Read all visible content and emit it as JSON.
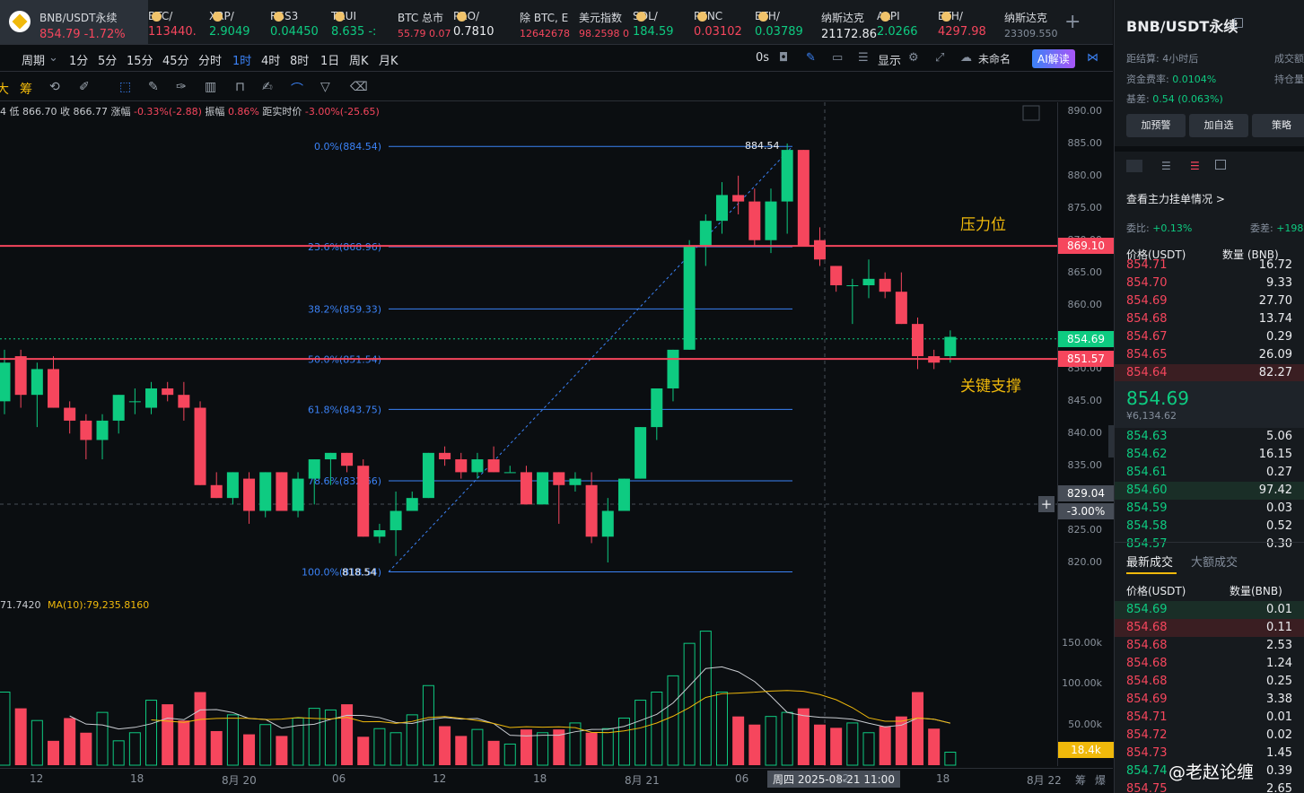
{
  "tabs": [
    {
      "name": "BNB/USDT永续",
      "value": "854.79  -1.72%",
      "color": "#f6465d",
      "active": true
    },
    {
      "name": "BTC/",
      "value": "113440.",
      "color": "#f6465d"
    },
    {
      "name": "XRP/",
      "value": "2.9049",
      "color": "#0ecb81"
    },
    {
      "name": "RSS3",
      "value": "0.04450",
      "color": "#0ecb81"
    },
    {
      "name": "TRUI",
      "value": "8.635  -:",
      "color": "#0ecb81"
    },
    {
      "name": "BTC 总市",
      "value": "55.79  0.07",
      "color": "#f6465d"
    },
    {
      "name": "PRO/",
      "value": "0.7810",
      "color": "#eaecef"
    },
    {
      "name": "除 BTC, E",
      "value": "12642678",
      "color": "#f6465d"
    },
    {
      "name": "美元指数",
      "value": "98.2598  0",
      "color": "#f6465d"
    },
    {
      "name": "SOL/",
      "value": "184.59",
      "color": "#0ecb81"
    },
    {
      "name": "PENC",
      "value": "0.03102",
      "color": "#f6465d"
    },
    {
      "name": "ETH/",
      "value": "0.03789",
      "color": "#0ecb81"
    },
    {
      "name": "纳斯达克",
      "value": "21172.86",
      "color": "#eaecef"
    },
    {
      "name": "ALPI",
      "value": "2.0266",
      "color": "#0ecb81"
    },
    {
      "name": "ETH/",
      "value": "4297.98",
      "color": "#f6465d"
    },
    {
      "name": "纳斯达克",
      "value": "23309.550",
      "color": "#848e9c"
    }
  ],
  "toolbar": {
    "period": "周期",
    "intervals": [
      "1分",
      "5分",
      "15分",
      "45分",
      "分时",
      "1时",
      "4时",
      "8时",
      "1日",
      "周K",
      "月K"
    ],
    "active": "1时",
    "countdown": "0s",
    "display": "显示",
    "layout": "未命名",
    "ai": "AI解读"
  },
  "toolbar2": {
    "left": [
      "大",
      "筹"
    ]
  },
  "info": {
    "text1": "4  低 866.70  收 866.77  涨幅 ",
    "chg": "-0.33%(-2.88)",
    "text2": "  振幅 ",
    "amp": "0.86%",
    "text3": "  距实时价 ",
    "dist": "-3.00%(-25.65)"
  },
  "volume_info": {
    "left": "71.7420",
    "ma": "MA(10):79,235.8160"
  },
  "fib": [
    {
      "label": "0.0%(884.54)",
      "price": 884.54
    },
    {
      "label": "23.6%(868.96)",
      "price": 868.96
    },
    {
      "label": "38.2%(859.33)",
      "price": 859.33
    },
    {
      "label": "50.0%(851.54)",
      "price": 851.54
    },
    {
      "label": "61.8%(843.75)",
      "price": 843.75
    },
    {
      "label": "78.6%(832.66)",
      "price": 832.66
    },
    {
      "label": "100.0%(818.54)",
      "price": 818.54
    }
  ],
  "fib_high_label": "884.54",
  "fib_low_label": "818.54",
  "annotations": {
    "resistance": "压力位",
    "support": "关键支撑"
  },
  "price_axis": [
    "890.00",
    "885.00",
    "880.00",
    "875.00",
    "870.00",
    "865.00",
    "860.00",
    "855.00",
    "850.00",
    "845.00",
    "840.00",
    "835.00",
    "830.00",
    "825.00",
    "820.00"
  ],
  "price_tags": {
    "resistance": "869.10",
    "last": "854.69",
    "support": "851.57",
    "cross_price": "829.04",
    "cross_pct": "-3.00%"
  },
  "vol_axis": [
    "150.00k",
    "100.00k",
    "50.00k"
  ],
  "vol_tag": "18.4k",
  "x_axis": [
    "12",
    "18",
    "8月 20",
    "06",
    "12",
    "18",
    "8月 21",
    "06",
    "12",
    "18",
    "8月 22"
  ],
  "x_cross": "周四 2025-08-21 11:00",
  "right": {
    "title": "BNB/USDT永续",
    "settle_label": "距结算:",
    "settle_val": "4小时后",
    "turnover_label": "成交额",
    "funding_label": "资金费率:",
    "funding_val": "0.0104%",
    "oi_label": "持仓量",
    "basis_label": "基差:",
    "basis_val": "0.54 (0.063%)",
    "buttons": [
      "加预警",
      "加自选",
      "策略"
    ],
    "depth_link": "查看主力挂单情况 >",
    "ratio_label": "委比:",
    "ratio_val": "+0.13%",
    "diff_label": "委差:",
    "diff_val": "+198",
    "ob_head_price": "价格(USDT)",
    "ob_head_qty": "数量 (BNB)",
    "asks": [
      [
        "854.71",
        "16.72"
      ],
      [
        "854.70",
        "9.33"
      ],
      [
        "854.69",
        "27.70"
      ],
      [
        "854.68",
        "13.74"
      ],
      [
        "854.67",
        "0.29"
      ],
      [
        "854.65",
        "26.09"
      ],
      [
        "854.64",
        "82.27"
      ]
    ],
    "mid": "854.69",
    "mid_sub": "¥6,134.62",
    "bids": [
      [
        "854.63",
        "5.06"
      ],
      [
        "854.62",
        "16.15"
      ],
      [
        "854.61",
        "0.27"
      ],
      [
        "854.60",
        "97.42"
      ],
      [
        "854.59",
        "0.03"
      ],
      [
        "854.58",
        "0.52"
      ],
      [
        "854.57",
        "0.30"
      ]
    ],
    "trades_tab1": "最新成交",
    "trades_tab2": "大额成交",
    "tr_head_price": "价格(USDT)",
    "tr_head_qty": "数量(BNB)",
    "trades": [
      [
        "854.69",
        "0.01",
        "g"
      ],
      [
        "854.68",
        "0.11",
        "r"
      ],
      [
        "854.68",
        "2.53",
        "r"
      ],
      [
        "854.68",
        "1.24",
        "r"
      ],
      [
        "854.68",
        "0.25",
        "r"
      ],
      [
        "854.69",
        "3.38",
        "r"
      ],
      [
        "854.71",
        "0.01",
        "r"
      ],
      [
        "854.72",
        "0.02",
        "r"
      ],
      [
        "854.73",
        "1.45",
        "r"
      ],
      [
        "854.74",
        "0.39",
        "g"
      ],
      [
        "854.75",
        "2.65",
        "r"
      ]
    ],
    "watermark": "@老赵论缠"
  },
  "chart_data": {
    "type": "candlestick",
    "interval": "1h",
    "ylim": [
      817,
      891
    ],
    "candles": [
      {
        "o": 845,
        "h": 853,
        "l": 843,
        "c": 851
      },
      {
        "o": 852,
        "h": 853,
        "l": 844,
        "c": 846
      },
      {
        "o": 846,
        "h": 851,
        "l": 841,
        "c": 850
      },
      {
        "o": 850,
        "h": 852,
        "l": 844,
        "c": 844
      },
      {
        "o": 844,
        "h": 845,
        "l": 840,
        "c": 842
      },
      {
        "o": 842,
        "h": 843,
        "l": 836,
        "c": 839
      },
      {
        "o": 839,
        "h": 843,
        "l": 836,
        "c": 842
      },
      {
        "o": 842,
        "h": 846,
        "l": 840,
        "c": 846
      },
      {
        "o": 845,
        "h": 847,
        "l": 843,
        "c": 845
      },
      {
        "o": 844,
        "h": 848,
        "l": 843,
        "c": 847
      },
      {
        "o": 847,
        "h": 848,
        "l": 845,
        "c": 846
      },
      {
        "o": 846,
        "h": 848,
        "l": 842,
        "c": 844
      },
      {
        "o": 844,
        "h": 845,
        "l": 832,
        "c": 832
      },
      {
        "o": 832,
        "h": 834,
        "l": 830,
        "c": 830
      },
      {
        "o": 830,
        "h": 834,
        "l": 829,
        "c": 834
      },
      {
        "o": 833,
        "h": 834,
        "l": 826,
        "c": 828
      },
      {
        "o": 828,
        "h": 834,
        "l": 827,
        "c": 834
      },
      {
        "o": 834,
        "h": 834,
        "l": 828,
        "c": 828
      },
      {
        "o": 828,
        "h": 834,
        "l": 827,
        "c": 833
      },
      {
        "o": 833,
        "h": 836,
        "l": 829,
        "c": 836
      },
      {
        "o": 836,
        "h": 837,
        "l": 832,
        "c": 837
      },
      {
        "o": 837,
        "h": 837,
        "l": 834,
        "c": 835
      },
      {
        "o": 835,
        "h": 836,
        "l": 824,
        "c": 824
      },
      {
        "o": 824,
        "h": 826,
        "l": 823,
        "c": 825
      },
      {
        "o": 825,
        "h": 831,
        "l": 821,
        "c": 828
      },
      {
        "o": 828,
        "h": 831,
        "l": 828,
        "c": 830
      },
      {
        "o": 830,
        "h": 837,
        "l": 830,
        "c": 837
      },
      {
        "o": 837,
        "h": 838,
        "l": 835,
        "c": 836
      },
      {
        "o": 836,
        "h": 837,
        "l": 833,
        "c": 834
      },
      {
        "o": 834,
        "h": 837,
        "l": 833,
        "c": 836
      },
      {
        "o": 836,
        "h": 838,
        "l": 834,
        "c": 834
      },
      {
        "o": 834,
        "h": 835,
        "l": 834,
        "c": 834
      },
      {
        "o": 834,
        "h": 835,
        "l": 829,
        "c": 829
      },
      {
        "o": 829,
        "h": 834,
        "l": 829,
        "c": 834
      },
      {
        "o": 834,
        "h": 834,
        "l": 826,
        "c": 832
      },
      {
        "o": 832,
        "h": 834,
        "l": 831,
        "c": 833
      },
      {
        "o": 832,
        "h": 834,
        "l": 823,
        "c": 824
      },
      {
        "o": 824,
        "h": 830,
        "l": 820,
        "c": 828
      },
      {
        "o": 828,
        "h": 833,
        "l": 828,
        "c": 833
      },
      {
        "o": 833,
        "h": 841,
        "l": 833,
        "c": 841
      },
      {
        "o": 841,
        "h": 847,
        "l": 839,
        "c": 847
      },
      {
        "o": 847,
        "h": 853,
        "l": 845,
        "c": 853
      },
      {
        "o": 853,
        "h": 870,
        "l": 853,
        "c": 869
      },
      {
        "o": 869,
        "h": 874,
        "l": 866,
        "c": 873
      },
      {
        "o": 873,
        "h": 879,
        "l": 871,
        "c": 877
      },
      {
        "o": 877,
        "h": 880,
        "l": 874,
        "c": 876
      },
      {
        "o": 876,
        "h": 878,
        "l": 869,
        "c": 870
      },
      {
        "o": 870,
        "h": 878,
        "l": 868,
        "c": 876
      },
      {
        "o": 876,
        "h": 885,
        "l": 871,
        "c": 884
      },
      {
        "o": 884,
        "h": 884,
        "l": 869,
        "c": 869
      },
      {
        "o": 870,
        "h": 872,
        "l": 866,
        "c": 867
      },
      {
        "o": 866,
        "h": 866,
        "l": 862,
        "c": 863
      },
      {
        "o": 863,
        "h": 864,
        "l": 857,
        "c": 863
      },
      {
        "o": 863,
        "h": 867,
        "l": 861,
        "c": 864
      },
      {
        "o": 864,
        "h": 865,
        "l": 861,
        "c": 862
      },
      {
        "o": 862,
        "h": 865,
        "l": 857,
        "c": 857
      },
      {
        "o": 857,
        "h": 858,
        "l": 850,
        "c": 852
      },
      {
        "o": 852,
        "h": 853,
        "l": 850,
        "c": 851
      },
      {
        "o": 852,
        "h": 856,
        "l": 851,
        "c": 855
      }
    ],
    "volume": [
      90,
      70,
      55,
      30,
      58,
      40,
      65,
      30,
      40,
      80,
      75,
      55,
      90,
      42,
      62,
      38,
      50,
      36,
      58,
      70,
      68,
      75,
      35,
      45,
      40,
      62,
      98,
      48,
      36,
      44,
      30,
      26,
      44,
      40,
      44,
      52,
      40,
      45,
      58,
      80,
      90,
      110,
      150,
      165,
      90,
      60,
      50,
      60,
      65,
      70,
      50,
      46,
      52,
      40,
      48,
      60,
      90,
      45,
      16
    ],
    "vol_ylim": [
      0,
      180
    ],
    "vol_labels": [
      "50.00k",
      "100.00k",
      "150.00k"
    ],
    "x_labels": [
      "12",
      "18",
      "8月 20",
      "06",
      "12",
      "18",
      "8月 21",
      "06",
      "12",
      "18",
      "8月 22"
    ]
  }
}
